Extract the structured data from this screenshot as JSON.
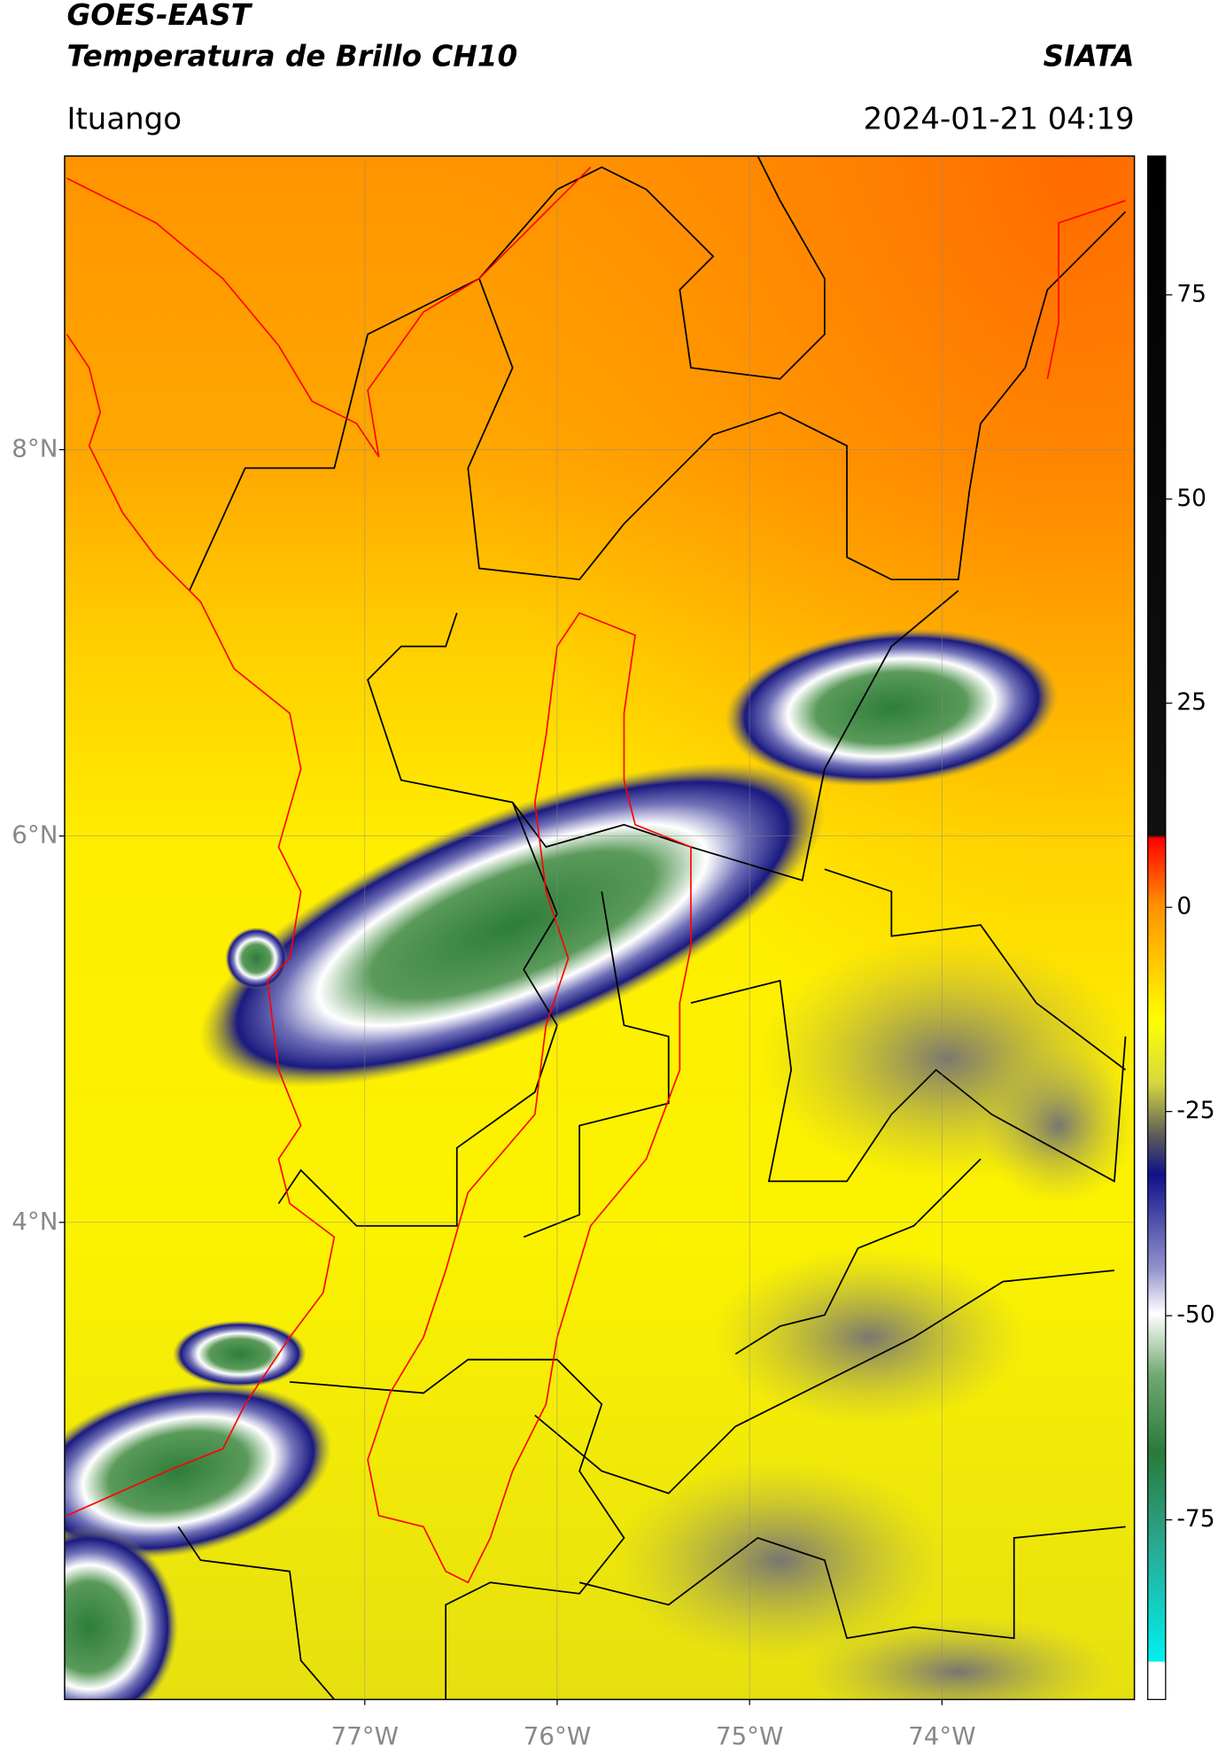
{
  "header": {
    "title": "GOES-EAST",
    "subtitle": "Temperatura de Brillo CH10",
    "agency": "SIATA",
    "location": "Ituango",
    "datetime": "2024-01-21 04:19"
  },
  "map": {
    "xlim": [
      -78.56,
      -73.0
    ],
    "ylim": [
      1.53,
      9.52
    ],
    "xticks": [
      {
        "value": -77,
        "label": "77°W"
      },
      {
        "value": -76,
        "label": "76°W"
      },
      {
        "value": -75,
        "label": "75°W"
      },
      {
        "value": -74,
        "label": "74°W"
      }
    ],
    "yticks": [
      {
        "value": 8,
        "label": "8°N"
      },
      {
        "value": 6,
        "label": "6°N"
      },
      {
        "value": 4,
        "label": "4°N"
      }
    ]
  },
  "colorbar": {
    "lim": [
      -97,
      92
    ],
    "ticks": [
      75,
      50,
      25,
      0,
      -25,
      -50,
      -75
    ]
  }
}
